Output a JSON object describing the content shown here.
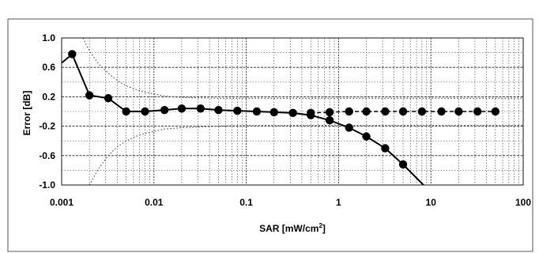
{
  "chart_data": {
    "type": "line",
    "title": "",
    "xlabel": "SAR [mW/cm",
    "xlabel_sup": "2",
    "xlabel_end": "]",
    "ylabel": "Error [dB]",
    "x_scale": "log",
    "xlim": [
      0.001,
      100
    ],
    "ylim": [
      -1.0,
      1.0
    ],
    "x_ticks": [
      0.001,
      0.01,
      0.1,
      1,
      10,
      100
    ],
    "x_tick_labels": [
      "0.001",
      "0.01",
      "0.1",
      "1",
      "10",
      "100"
    ],
    "y_ticks": [
      1.0,
      0.6,
      0.2,
      -0.2,
      -0.6,
      -1.0
    ],
    "y_tick_labels": [
      "1.0",
      "0.6",
      "0.2",
      "-0.2",
      "-0.6",
      "-1.0"
    ],
    "grid": true,
    "legend": "none",
    "series": [
      {
        "style": "solid-with-markers",
        "x": [
          0.00063,
          0.0013,
          0.002,
          0.0032,
          0.005,
          0.008,
          0.013,
          0.02,
          0.032,
          0.05,
          0.08,
          0.13,
          0.2,
          0.32,
          0.5,
          0.8,
          1.3,
          2,
          3.2,
          5,
          8,
          10
        ],
        "y": [
          0.45,
          0.78,
          0.22,
          0.18,
          0.0,
          0.0,
          0.02,
          0.04,
          0.04,
          0.02,
          0.01,
          0.0,
          -0.01,
          -0.02,
          -0.05,
          -0.12,
          -0.22,
          -0.34,
          -0.5,
          -0.72,
          -0.98,
          -1.1
        ],
        "markers": [
          false,
          true,
          true,
          true,
          true,
          true,
          true,
          true,
          true,
          true,
          true,
          true,
          true,
          true,
          true,
          true,
          true,
          true,
          true,
          true,
          false,
          false
        ]
      },
      {
        "style": "dashed-with-markers",
        "x": [
          0.5,
          0.8,
          1.3,
          2,
          3.2,
          5,
          8,
          13,
          20,
          32,
          50
        ],
        "y": [
          -0.02,
          -0.01,
          0.0,
          0.0,
          0.0,
          0.0,
          0.0,
          0.0,
          0.0,
          0.0,
          0.0
        ],
        "markers": [
          true,
          true,
          true,
          true,
          true,
          true,
          true,
          true,
          true,
          true,
          true
        ]
      },
      {
        "style": "dotted-envelope",
        "x": [
          0.0017,
          0.002,
          0.0025,
          0.0032,
          0.004,
          0.005,
          0.0063,
          0.008,
          0.01,
          0.013,
          0.02,
          0.05,
          0.1,
          0.3,
          1,
          10,
          100
        ],
        "y": [
          1.0,
          0.82,
          0.65,
          0.52,
          0.42,
          0.35,
          0.3,
          0.26,
          0.24,
          0.21,
          0.19,
          0.18,
          0.18,
          0.18,
          0.18,
          0.18,
          0.18
        ]
      },
      {
        "style": "dotted-envelope",
        "x": [
          0.002,
          0.0025,
          0.0032,
          0.004,
          0.005,
          0.0063,
          0.008,
          0.01,
          0.013,
          0.02,
          0.05,
          0.1,
          0.3,
          1,
          10,
          100
        ],
        "y": [
          -1.0,
          -0.78,
          -0.6,
          -0.48,
          -0.4,
          -0.34,
          -0.3,
          -0.27,
          -0.24,
          -0.22,
          -0.2,
          -0.19,
          -0.19,
          -0.19,
          -0.19,
          -0.19
        ]
      }
    ]
  }
}
